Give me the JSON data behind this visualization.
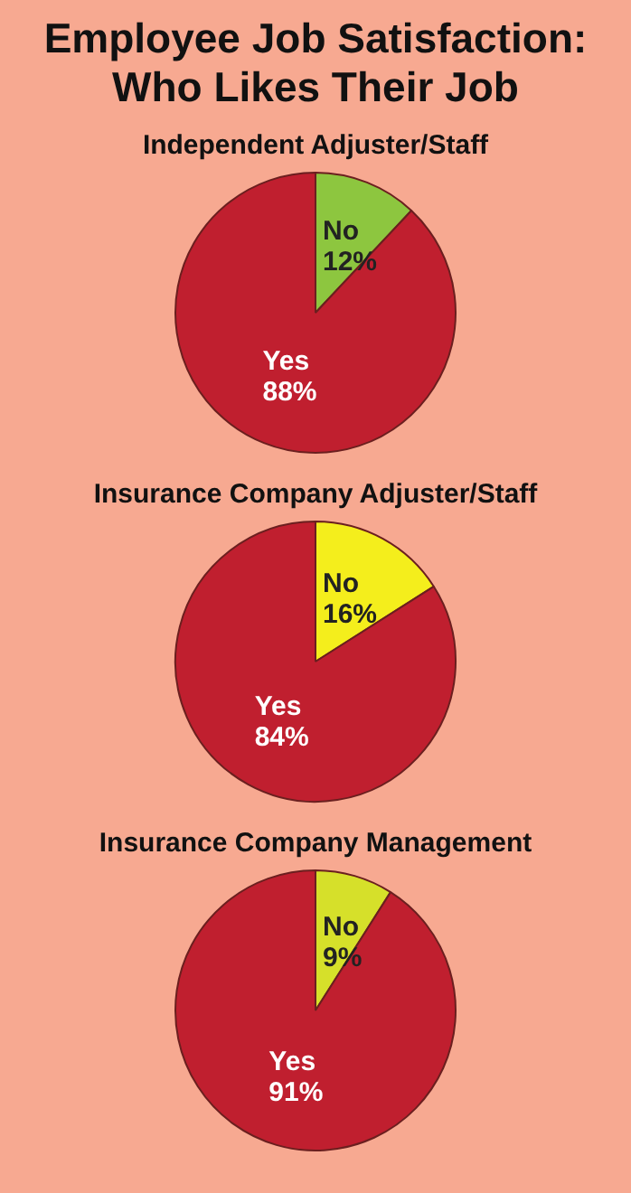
{
  "chart_data": [
    {
      "type": "other",
      "title": "Employee Job Satisfaction: Who Likes Their Job"
    },
    {
      "type": "pie",
      "title": "Independent Adjuster/Staff",
      "categories": [
        "No",
        "Yes"
      ],
      "values": [
        12,
        88
      ],
      "colors": [
        "#8dc63f",
        "#c01f2f"
      ],
      "value_labels": [
        "12%",
        "88%"
      ],
      "legend": false
    },
    {
      "type": "pie",
      "title": "Insurance Company Adjuster/Staff",
      "categories": [
        "No",
        "Yes"
      ],
      "values": [
        16,
        84
      ],
      "colors": [
        "#f4ee1c",
        "#c01f2f"
      ],
      "value_labels": [
        "16%",
        "84%"
      ],
      "legend": false
    },
    {
      "type": "pie",
      "title": "Insurance Company Management",
      "categories": [
        "No",
        "Yes"
      ],
      "values": [
        9,
        91
      ],
      "colors": [
        "#d6e02a",
        "#c01f2f"
      ],
      "value_labels": [
        "9%",
        "91%"
      ],
      "legend": false
    }
  ]
}
